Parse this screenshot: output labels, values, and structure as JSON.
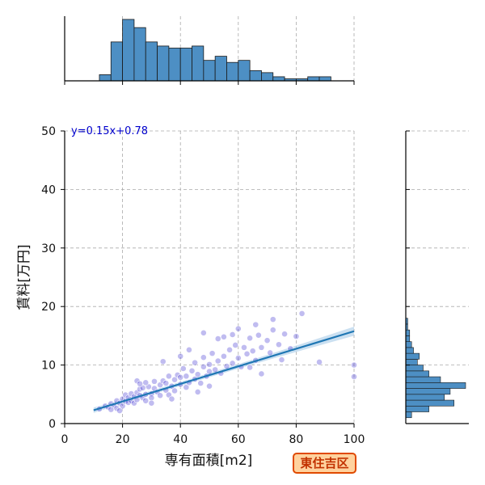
{
  "chart_data": {
    "type": "scatter",
    "xlabel": "専有面積[m2]",
    "ylabel": "賃料[万円]",
    "xlim": [
      0,
      100
    ],
    "ylim": [
      0,
      50
    ],
    "x_ticks": [
      "0",
      "20",
      "40",
      "60",
      "80",
      "100"
    ],
    "y_ticks": [
      "0",
      "10",
      "20",
      "30",
      "40",
      "50"
    ],
    "grid": true,
    "regression": {
      "equation": "y=0.15x+0.78",
      "slope": 0.15,
      "intercept": 0.78,
      "x_range": [
        10,
        100
      ]
    },
    "colors": {
      "points": "#3b2fd0",
      "line": "#1f77b4",
      "band": "#a9cbe8",
      "hist": "#4d8fc4",
      "edge": "#1a1a1a"
    },
    "points": [
      [
        12,
        2.5
      ],
      [
        14,
        3.0
      ],
      [
        15,
        2.8
      ],
      [
        16,
        3.4
      ],
      [
        17,
        3.1
      ],
      [
        18,
        3.9
      ],
      [
        18,
        2.6
      ],
      [
        19,
        3.5
      ],
      [
        20,
        4.2
      ],
      [
        20,
        3.0
      ],
      [
        21,
        3.8
      ],
      [
        21,
        4.9
      ],
      [
        22,
        3.6
      ],
      [
        22,
        4.4
      ],
      [
        23,
        5.1
      ],
      [
        23,
        3.9
      ],
      [
        24,
        4.6
      ],
      [
        24,
        3.5
      ],
      [
        25,
        5.3
      ],
      [
        25,
        4.1
      ],
      [
        26,
        4.8
      ],
      [
        26,
        5.9
      ],
      [
        27,
        4.4
      ],
      [
        27,
        6.1
      ],
      [
        28,
        5.0
      ],
      [
        28,
        3.9
      ],
      [
        29,
        6.3
      ],
      [
        30,
        5.1
      ],
      [
        30,
        4.4
      ],
      [
        31,
        6.0
      ],
      [
        31,
        7.2
      ],
      [
        32,
        5.4
      ],
      [
        33,
        6.6
      ],
      [
        33,
        4.8
      ],
      [
        34,
        7.3
      ],
      [
        35,
        5.7
      ],
      [
        35,
        6.9
      ],
      [
        36,
        8.1
      ],
      [
        36,
        4.9
      ],
      [
        37,
        6.4
      ],
      [
        38,
        7.5
      ],
      [
        38,
        5.6
      ],
      [
        39,
        8.3
      ],
      [
        40,
        6.7
      ],
      [
        40,
        7.9
      ],
      [
        41,
        9.4
      ],
      [
        42,
        6.2
      ],
      [
        42,
        8.1
      ],
      [
        43,
        7.0
      ],
      [
        44,
        9.0
      ],
      [
        45,
        7.6
      ],
      [
        45,
        10.4
      ],
      [
        46,
        8.4
      ],
      [
        47,
        6.9
      ],
      [
        48,
        9.7
      ],
      [
        48,
        11.3
      ],
      [
        49,
        8.1
      ],
      [
        50,
        10.1
      ],
      [
        50,
        8.9
      ],
      [
        51,
        12.0
      ],
      [
        52,
        9.2
      ],
      [
        53,
        10.7
      ],
      [
        54,
        8.6
      ],
      [
        55,
        11.5
      ],
      [
        56,
        9.8
      ],
      [
        57,
        12.6
      ],
      [
        58,
        10.3
      ],
      [
        59,
        13.4
      ],
      [
        60,
        11.2
      ],
      [
        61,
        9.7
      ],
      [
        62,
        13.0
      ],
      [
        63,
        11.9
      ],
      [
        64,
        14.6
      ],
      [
        65,
        12.4
      ],
      [
        66,
        10.8
      ],
      [
        67,
        15.1
      ],
      [
        68,
        13.0
      ],
      [
        70,
        14.2
      ],
      [
        71,
        12.1
      ],
      [
        72,
        16.0
      ],
      [
        74,
        13.5
      ],
      [
        76,
        15.3
      ],
      [
        78,
        12.8
      ],
      [
        80,
        14.9
      ],
      [
        82,
        18.8
      ],
      [
        88,
        10.5
      ],
      [
        100,
        10.0
      ],
      [
        100,
        8.0
      ],
      [
        34,
        10.6
      ],
      [
        25,
        7.3
      ],
      [
        28,
        7.0
      ],
      [
        16,
        2.4
      ],
      [
        19,
        2.2
      ],
      [
        30,
        3.5
      ],
      [
        26,
        6.8
      ],
      [
        40,
        11.5
      ],
      [
        55,
        14.8
      ],
      [
        60,
        16.2
      ],
      [
        72,
        17.8
      ],
      [
        68,
        8.5
      ],
      [
        64,
        9.6
      ],
      [
        46,
        5.4
      ],
      [
        50,
        6.4
      ],
      [
        37,
        4.2
      ],
      [
        43,
        12.6
      ],
      [
        58,
        15.2
      ],
      [
        66,
        16.9
      ],
      [
        53,
        14.5
      ],
      [
        48,
        15.5
      ],
      [
        75,
        10.9
      ]
    ],
    "hist_x": {
      "bin_edges": [
        0,
        4,
        8,
        12,
        16,
        20,
        24,
        28,
        32,
        36,
        40,
        44,
        48,
        52,
        56,
        60,
        64,
        68,
        72,
        76,
        80,
        84,
        88,
        92,
        96,
        100
      ],
      "counts": [
        0,
        0,
        0,
        3,
        19,
        30,
        26,
        19,
        17,
        16,
        16,
        17,
        10,
        12,
        9,
        10,
        5,
        4,
        2,
        1,
        1,
        2,
        2,
        0,
        0
      ]
    },
    "hist_y": {
      "bin_edges": [
        1,
        2,
        3,
        4,
        5,
        6,
        7,
        8,
        9,
        10,
        11,
        12,
        13,
        14,
        15,
        16,
        17,
        18
      ],
      "counts": [
        3,
        12,
        25,
        20,
        23,
        31,
        18,
        12,
        9,
        6,
        7,
        4,
        3,
        2,
        2,
        1,
        1
      ]
    }
  },
  "badge": {
    "label": "東住吉区"
  }
}
